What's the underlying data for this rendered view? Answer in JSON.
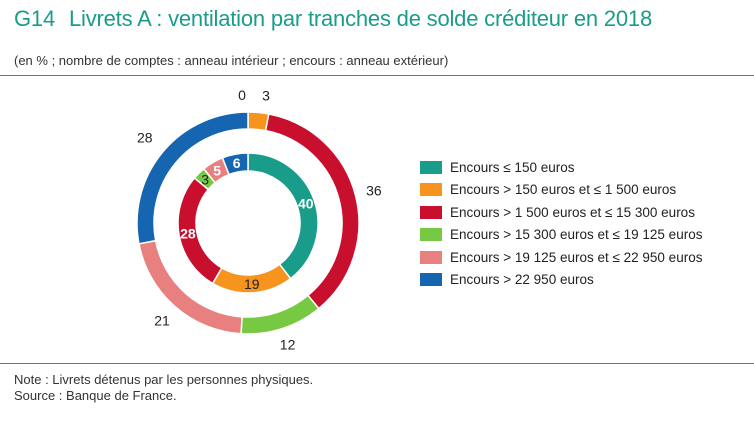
{
  "header": {
    "code": "G14",
    "title": "Livrets A : ventilation par tranches de solde créditeur en 2018",
    "subtitle": "(en % ; nombre de comptes : anneau intérieur ; encours : anneau extérieur)"
  },
  "footer": {
    "note": "Note : Livrets détenus par les personnes physiques.",
    "source": "Source : Banque de France."
  },
  "chart_data": {
    "type": "pie",
    "categories": [
      "Encours ≤ 150 euros",
      "Encours > 150 euros et ≤ 1 500 euros",
      "Encours > 1 500 euros et ≤ 15 300 euros",
      "Encours > 15 300 euros et ≤ 19 125 euros",
      "Encours > 19 125 euros et ≤ 22 950 euros",
      "Encours > 22 950 euros"
    ],
    "colors": [
      "#1a9c8a",
      "#f7941d",
      "#c8102e",
      "#77c943",
      "#e88080",
      "#1565b0"
    ],
    "series": [
      {
        "values": [
          0,
          3,
          36,
          12,
          21,
          28
        ]
      },
      {
        "values": [
          40,
          19,
          28,
          3,
          5,
          6
        ]
      }
    ],
    "ring_labels": {
      "outer": [
        "0",
        "3",
        "36",
        "12",
        "21",
        "28"
      ],
      "inner": [
        "40",
        "19",
        "28",
        "3",
        "5",
        "6"
      ]
    }
  }
}
